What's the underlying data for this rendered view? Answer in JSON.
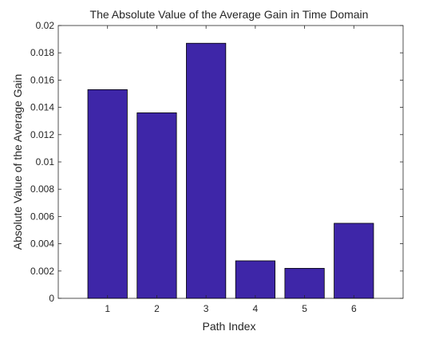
{
  "chart_data": {
    "type": "bar",
    "title": "The Absolute Value of the Average Gain in Time Domain",
    "xlabel": "Path Index",
    "ylabel": "Absolute Value of the Average Gain",
    "categories": [
      "1",
      "2",
      "3",
      "4",
      "5",
      "6"
    ],
    "values": [
      0.0153,
      0.0136,
      0.0187,
      0.00275,
      0.0022,
      0.0055
    ],
    "xlim": [
      0,
      7
    ],
    "ylim": [
      0,
      0.02
    ],
    "yticks": [
      0,
      0.002,
      0.004,
      0.006,
      0.008,
      0.01,
      0.012,
      0.014,
      0.016,
      0.018,
      0.02
    ],
    "ytick_labels": [
      "0",
      "0.002",
      "0.004",
      "0.006",
      "0.008",
      "0.01",
      "0.012",
      "0.014",
      "0.016",
      "0.018",
      "0.02"
    ],
    "grid": false,
    "legend": "none",
    "colors": {
      "bar_fill": "#3E26A8",
      "bar_edge": "#000000",
      "axes": "#262626",
      "background": "#FFFFFF"
    }
  }
}
